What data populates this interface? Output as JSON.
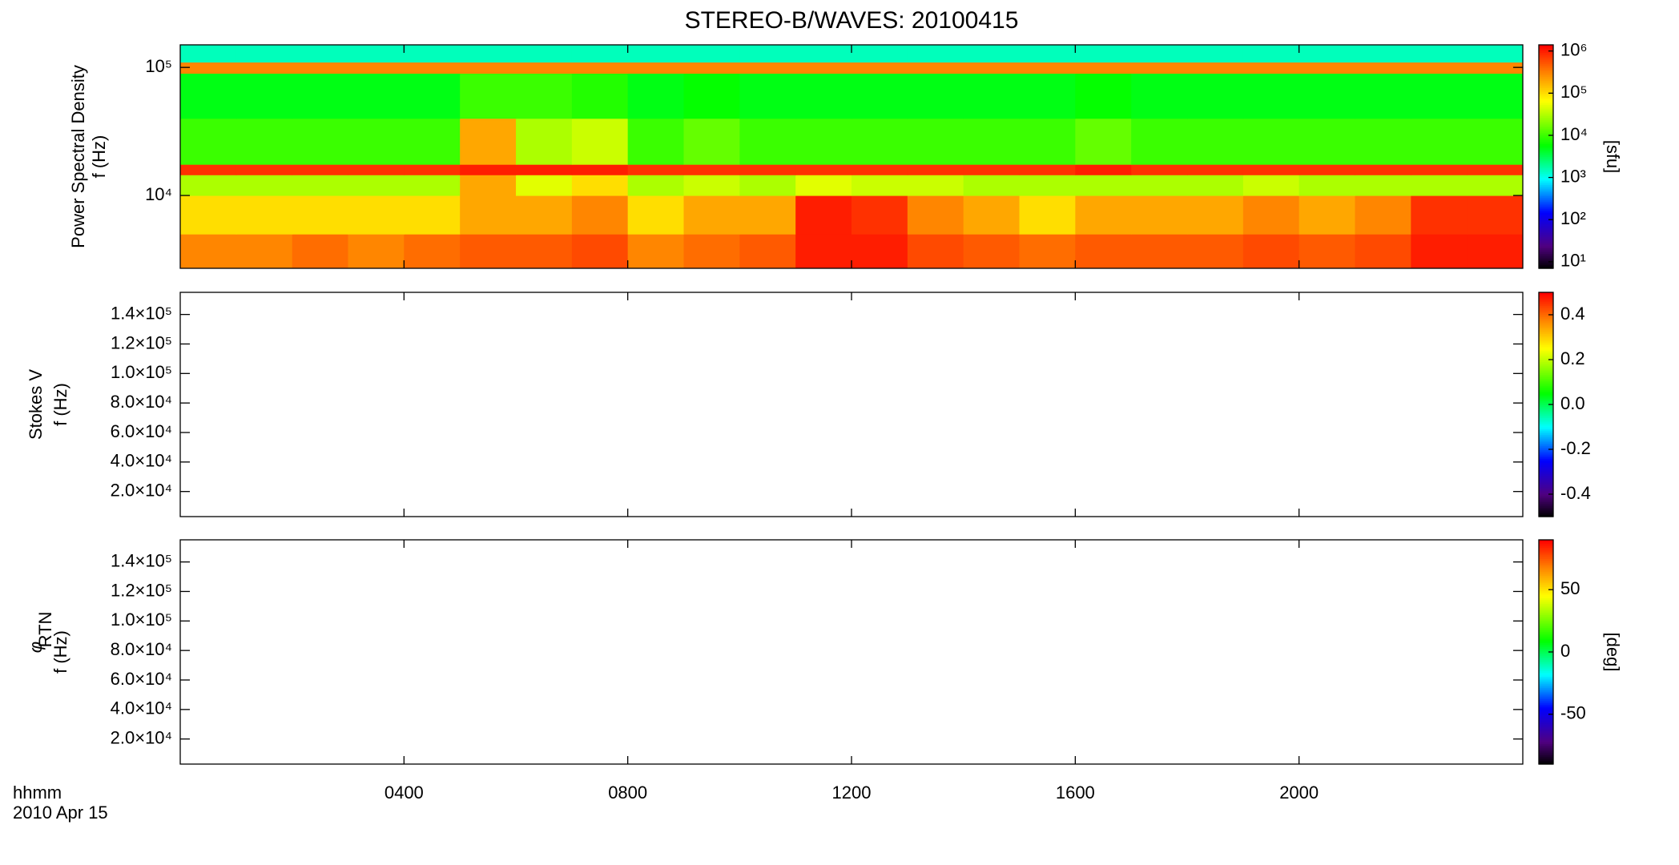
{
  "title": "STEREO-B/WAVES: 20100415",
  "x_axis": {
    "label": "hhmm",
    "date": "2010 Apr 15",
    "xlim": [
      0,
      24
    ],
    "xticks": [
      {
        "value": 4,
        "label": "0400"
      },
      {
        "value": 8,
        "label": "0800"
      },
      {
        "value": 12,
        "label": "1200"
      },
      {
        "value": 16,
        "label": "1600"
      },
      {
        "value": 20,
        "label": "2000"
      }
    ]
  },
  "chart_data": [
    {
      "type": "heatmap",
      "ylabel_title": "Power Spectral Density",
      "ylabel": "f (Hz)",
      "yscale": "log",
      "ylim": [
        2700,
        150000
      ],
      "yticks": [
        {
          "value": 10000,
          "label": "10⁴"
        },
        {
          "value": 100000,
          "label": "10⁵"
        }
      ],
      "x_bins": [
        0,
        1,
        2,
        3,
        4,
        5,
        6,
        7,
        8,
        9,
        10,
        11,
        12,
        13,
        14,
        15,
        16,
        17,
        18,
        19,
        20,
        21,
        22,
        23,
        24
      ],
      "y_bins": [
        2700,
        5000,
        10000,
        14500,
        17500,
        40000,
        90000,
        110000,
        150000
      ],
      "z": [
        [
          300000.0,
          300000.0,
          400000.0,
          300000.0,
          400000.0,
          500000.0,
          500000.0,
          600000.0,
          300000.0,
          400000.0,
          500000.0,
          1000000.0,
          1000000.0,
          600000.0,
          500000.0,
          400000.0,
          500000.0,
          500000.0,
          500000.0,
          600000.0,
          500000.0,
          600000.0,
          1000000.0,
          1000000.0
        ],
        [
          100000.0,
          100000.0,
          100000.0,
          100000.0,
          100000.0,
          200000.0,
          200000.0,
          300000.0,
          100000.0,
          200000.0,
          200000.0,
          1000000.0,
          800000.0,
          300000.0,
          200000.0,
          100000.0,
          200000.0,
          200000.0,
          200000.0,
          300000.0,
          200000.0,
          300000.0,
          800000.0,
          800000.0
        ],
        [
          30000.0,
          30000.0,
          30000.0,
          30000.0,
          30000.0,
          200000.0,
          50000.0,
          100000.0,
          30000.0,
          40000.0,
          30000.0,
          50000.0,
          40000.0,
          40000.0,
          30000.0,
          30000.0,
          30000.0,
          30000.0,
          30000.0,
          40000.0,
          30000.0,
          30000.0,
          30000.0,
          30000.0
        ],
        [
          800000.0,
          800000.0,
          800000.0,
          800000.0,
          800000.0,
          1000000.0,
          1000000.0,
          1000000.0,
          800000.0,
          800000.0,
          800000.0,
          800000.0,
          800000.0,
          800000.0,
          800000.0,
          800000.0,
          1000000.0,
          800000.0,
          800000.0,
          800000.0,
          800000.0,
          800000.0,
          800000.0,
          800000.0
        ],
        [
          10000.0,
          10000.0,
          10000.0,
          10000.0,
          10000.0,
          200000.0,
          30000.0,
          40000.0,
          10000.0,
          15000.0,
          10000.0,
          10000.0,
          10000.0,
          10000.0,
          10000.0,
          10000.0,
          15000.0,
          10000.0,
          10000.0,
          10000.0,
          10000.0,
          10000.0,
          10000.0,
          10000.0
        ],
        [
          5000.0,
          5000.0,
          5000.0,
          5000.0,
          5000.0,
          10000.0,
          10000.0,
          8000.0,
          5000.0,
          6000.0,
          5000.0,
          5000.0,
          5000.0,
          5000.0,
          5000.0,
          5000.0,
          6000.0,
          5000.0,
          5000.0,
          5000.0,
          5000.0,
          5000.0,
          5000.0,
          5000.0
        ],
        [
          300000.0,
          300000.0,
          300000.0,
          300000.0,
          300000.0,
          300000.0,
          300000.0,
          300000.0,
          300000.0,
          300000.0,
          300000.0,
          300000.0,
          300000.0,
          300000.0,
          300000.0,
          300000.0,
          300000.0,
          300000.0,
          300000.0,
          300000.0,
          300000.0,
          300000.0,
          300000.0,
          300000.0
        ],
        [
          1500.0,
          1500.0,
          1500.0,
          1500.0,
          1500.0,
          1500.0,
          1500.0,
          1500.0,
          1500.0,
          1500.0,
          1500.0,
          1500.0,
          1500.0,
          1500.0,
          1500.0,
          1500.0,
          1500.0,
          1500.0,
          1500.0,
          1500.0,
          1500.0,
          1500.0,
          1500.0,
          1500.0
        ]
      ],
      "colorbar": {
        "scale": "log",
        "lim": [
          7,
          1400000
        ],
        "label": "[sfu]",
        "ticks": [
          {
            "value": 10,
            "label": "10¹"
          },
          {
            "value": 100,
            "label": "10²"
          },
          {
            "value": 1000,
            "label": "10³"
          },
          {
            "value": 10000,
            "label": "10⁴"
          },
          {
            "value": 100000,
            "label": "10⁵"
          },
          {
            "value": 1000000,
            "label": "10⁶"
          }
        ]
      }
    },
    {
      "type": "heatmap",
      "ylabel_title": "Stokes V",
      "ylabel": "f (Hz)",
      "yscale": "linear",
      "ylim": [
        3000,
        155000
      ],
      "yticks": [
        {
          "value": 20000,
          "label": "2.0×10⁴"
        },
        {
          "value": 40000,
          "label": "4.0×10⁴"
        },
        {
          "value": 60000,
          "label": "6.0×10⁴"
        },
        {
          "value": 80000,
          "label": "8.0×10⁴"
        },
        {
          "value": 100000,
          "label": "1.0×10⁵"
        },
        {
          "value": 120000,
          "label": "1.2×10⁵"
        },
        {
          "value": 140000,
          "label": "1.4×10⁵"
        }
      ],
      "colorbar": {
        "scale": "linear",
        "lim": [
          -0.5,
          0.5
        ],
        "ticks": [
          -0.4,
          -0.2,
          {
            "value": 0,
            "label": "0.0"
          },
          0.2,
          0.4
        ]
      }
    },
    {
      "type": "heatmap",
      "ylabel_title": "φ",
      "ylabel_title_sub": "RTN",
      "ylabel": "f (Hz)",
      "yscale": "linear",
      "ylim": [
        3000,
        155000
      ],
      "yticks": [
        {
          "value": 20000,
          "label": "2.0×10⁴"
        },
        {
          "value": 40000,
          "label": "4.0×10⁴"
        },
        {
          "value": 60000,
          "label": "6.0×10⁴"
        },
        {
          "value": 80000,
          "label": "8.0×10⁴"
        },
        {
          "value": 100000,
          "label": "1.0×10⁵"
        },
        {
          "value": 120000,
          "label": "1.2×10⁵"
        },
        {
          "value": 140000,
          "label": "1.4×10⁵"
        }
      ],
      "colorbar": {
        "scale": "linear",
        "lim": [
          -90,
          90
        ],
        "label": "[deg]",
        "ticks": [
          -50,
          0,
          50
        ]
      }
    }
  ]
}
